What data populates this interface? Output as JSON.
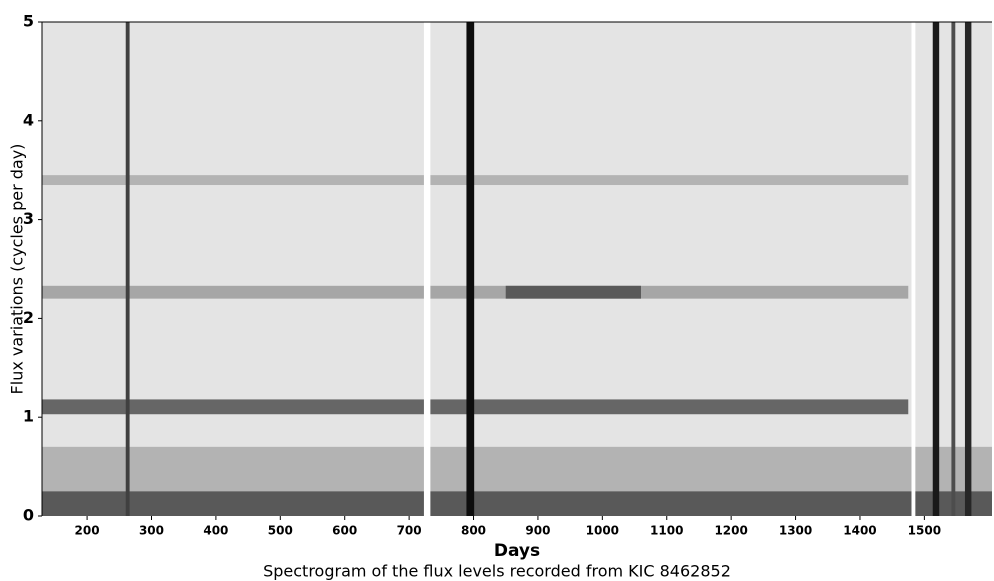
{
  "chart_data": {
    "type": "heatmap",
    "caption": "Spectrogram of the flux levels recorded from KIC 8462852",
    "x_label": "Days",
    "y_label": "Flux variations (cycles per day)",
    "xlim": [
      130,
      1605
    ],
    "xticks": [
      200,
      300,
      400,
      500,
      600,
      700,
      800,
      900,
      1000,
      1100,
      1200,
      1300,
      1400,
      1500
    ],
    "ylim": [
      0,
      5
    ],
    "yticks": [
      0,
      1,
      2,
      3,
      4,
      5
    ],
    "bands": [
      {
        "y": [
          0.25,
          0.7
        ],
        "x": [
          130,
          1605
        ],
        "intensity": 0.3
      },
      {
        "y": [
          0,
          0.25
        ],
        "x": [
          130,
          1605
        ],
        "intensity": 0.65
      },
      {
        "y": [
          1.03,
          1.18
        ],
        "x": [
          130,
          1475
        ],
        "intensity": 0.6
      },
      {
        "y": [
          2.2,
          2.33
        ],
        "x": [
          130,
          1475
        ],
        "intensity": 0.35
      },
      {
        "y": [
          2.2,
          2.33
        ],
        "x": [
          850,
          1060
        ],
        "intensity": 0.65
      },
      {
        "y": [
          3.35,
          3.45
        ],
        "x": [
          130,
          1475
        ],
        "intensity": 0.3
      }
    ],
    "stripes": [
      {
        "x": 263,
        "width": 6,
        "intensity": 0.75
      },
      {
        "x": 795,
        "width": 12,
        "intensity": 0.95
      },
      {
        "x": 728,
        "width": 10,
        "intensity": 0
      },
      {
        "x": 1483,
        "width": 6,
        "intensity": 0
      },
      {
        "x": 1518,
        "width": 10,
        "intensity": 0.9
      },
      {
        "x": 1545,
        "width": 6,
        "intensity": 0.7
      },
      {
        "x": 1568,
        "width": 10,
        "intensity": 0.85
      }
    ]
  }
}
